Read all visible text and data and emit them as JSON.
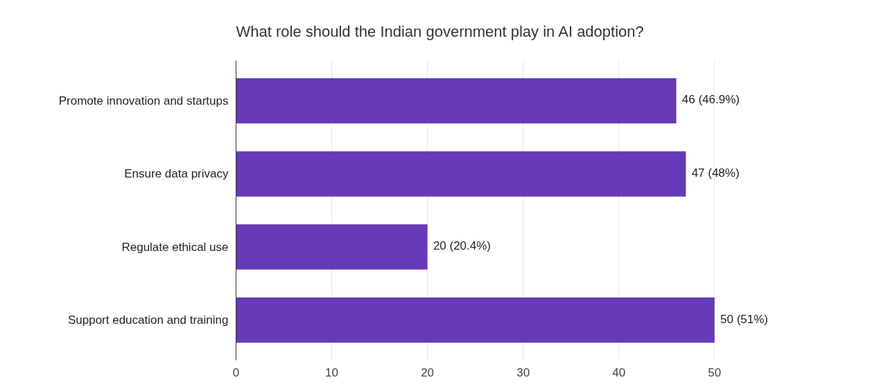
{
  "chart_data": {
    "type": "bar",
    "orientation": "horizontal",
    "title": "What role should the Indian government play in AI adoption?",
    "categories": [
      "Promote innovation and startups",
      "Ensure data privacy",
      "Regulate ethical use",
      "Support education and training"
    ],
    "values": [
      46,
      47,
      20,
      50
    ],
    "color": "#673ab7",
    "value_labels": [
      "46 (46.9%)",
      "47 (48%)",
      "20 (20.4%)",
      "50 (51%)"
    ],
    "xlim": [
      0,
      50
    ],
    "xticks": [
      0,
      10,
      20,
      30,
      40,
      50
    ],
    "grid": "x"
  }
}
